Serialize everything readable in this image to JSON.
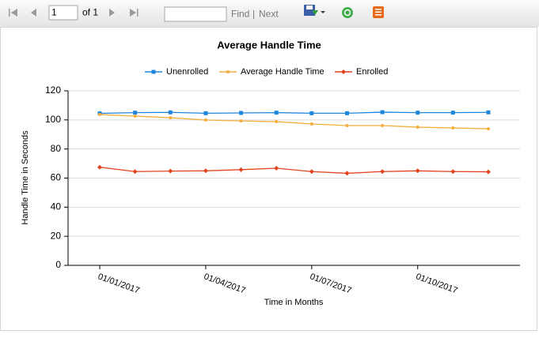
{
  "toolbar": {
    "page": "1",
    "of": "of 1",
    "find": "Find",
    "separator": "|",
    "next": "Next"
  },
  "chart_data": {
    "type": "line",
    "title": "Average Handle Time",
    "x_label": "Time in Months",
    "y_label": "Handle Time in Seconds",
    "categories": [
      "01/01/2017",
      null,
      null,
      "01/04/2017",
      null,
      null,
      "01/07/2017",
      null,
      null,
      "01/10/2017",
      null,
      null
    ],
    "series": [
      {
        "name": "Unenrolled",
        "color": "#1f86dd",
        "marker": "square",
        "values": [
          104.5,
          105,
          105.2,
          104.6,
          104.8,
          105,
          104.6,
          104.6,
          105.3,
          105,
          105,
          105.2
        ]
      },
      {
        "name": "Average Handle Time",
        "color": "#f5ae3d",
        "marker": "circle",
        "values": [
          103.7,
          102.6,
          101.5,
          99.9,
          99.3,
          98.8,
          97.2,
          96.1,
          96.1,
          95,
          94.5,
          93.9
        ]
      },
      {
        "name": "Enrolled",
        "color": "#e2431d",
        "marker": "diamond",
        "values": [
          67.5,
          64.5,
          64.8,
          65,
          65.8,
          66.8,
          64.5,
          63.3,
          64.5,
          65,
          64.5,
          64.3
        ]
      }
    ],
    "ylim": [
      0,
      120
    ],
    "yticks": [
      0,
      20,
      40,
      60,
      80,
      100,
      120
    ],
    "grid": true,
    "legend": "top"
  }
}
